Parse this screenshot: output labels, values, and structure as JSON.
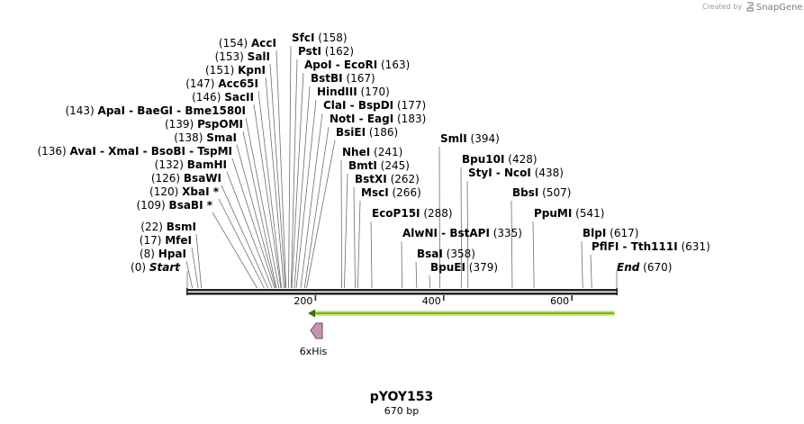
{
  "branding": {
    "created_by": "Created by",
    "product": "SnapGene",
    "icon": "snapgene-logo-icon"
  },
  "plasmid": {
    "name": "pYOY153",
    "length_label": "670 bp",
    "length": 670
  },
  "axis": {
    "ticks": [
      200,
      400,
      600
    ]
  },
  "colors": {
    "arrow_fill": "#7fb21c",
    "arrow_glow": "#c9ee8f",
    "his_fill": "#c792b0",
    "his_stroke": "#6e4b5f",
    "line": "#6e6e6e"
  },
  "start_label": {
    "name": "Start",
    "pos": 0
  },
  "end_label": {
    "name": "End",
    "pos": 670
  },
  "left_sites": [
    {
      "pos": 154,
      "label": "AccI"
    },
    {
      "pos": 153,
      "label": "SalI"
    },
    {
      "pos": 151,
      "label": "KpnI"
    },
    {
      "pos": 147,
      "label": "Acc65I"
    },
    {
      "pos": 146,
      "label": "SacII"
    },
    {
      "pos": 143,
      "label": "ApaI - BaeGI - Bme1580I"
    },
    {
      "pos": 139,
      "label": "PspOMI"
    },
    {
      "pos": 138,
      "label": "SmaI"
    },
    {
      "pos": 136,
      "label": "AvaI - XmaI - BsoBI - TspMI"
    },
    {
      "pos": 132,
      "label": "BamHI"
    },
    {
      "pos": 126,
      "label": "BsaWI"
    },
    {
      "pos": 120,
      "label": "XbaI *"
    },
    {
      "pos": 109,
      "label": "BsaBI *"
    },
    {
      "pos": 22,
      "label": "BsmI"
    },
    {
      "pos": 17,
      "label": "MfeI"
    },
    {
      "pos": 8,
      "label": "HpaI"
    }
  ],
  "right_sites": [
    {
      "pos": 158,
      "label": "SfcI"
    },
    {
      "pos": 162,
      "label": "PstI"
    },
    {
      "pos": 163,
      "label": "ApoI - EcoRI"
    },
    {
      "pos": 167,
      "label": "BstBI"
    },
    {
      "pos": 170,
      "label": "HindIII"
    },
    {
      "pos": 177,
      "label": "ClaI - BspDI"
    },
    {
      "pos": 183,
      "label": "NotI - EagI"
    },
    {
      "pos": 186,
      "label": "BsiEI"
    },
    {
      "pos": 241,
      "label": "NheI"
    },
    {
      "pos": 245,
      "label": "BmtI"
    },
    {
      "pos": 262,
      "label": "BstXI"
    },
    {
      "pos": 266,
      "label": "MscI"
    },
    {
      "pos": 288,
      "label": "EcoP15I"
    },
    {
      "pos": 394,
      "label": "SmlI"
    },
    {
      "pos": 428,
      "label": "Bpu10I"
    },
    {
      "pos": 438,
      "label": "StyI - NcoI"
    },
    {
      "pos": 507,
      "label": "BbsI"
    },
    {
      "pos": 541,
      "label": "PpuMI"
    },
    {
      "pos": 335,
      "label": "AlwNI - BstAPI"
    },
    {
      "pos": 358,
      "label": "BsaI"
    },
    {
      "pos": 379,
      "label": "BpuEI"
    },
    {
      "pos": 617,
      "label": "BlpI"
    },
    {
      "pos": 631,
      "label": "PflFI - Tth111I"
    }
  ],
  "features": [
    {
      "name": "6xHis",
      "start": 190,
      "end": 208,
      "direction": "reverse"
    },
    {
      "name": "",
      "start": 190,
      "end": 670,
      "direction": "reverse"
    }
  ]
}
